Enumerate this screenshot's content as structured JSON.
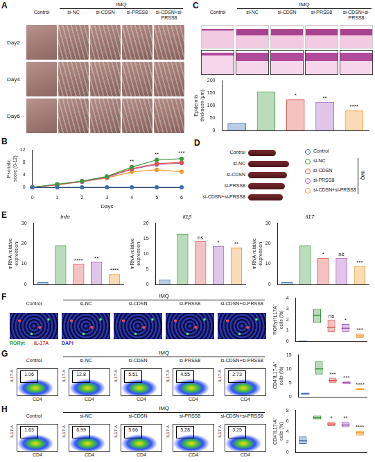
{
  "panels": {
    "A": {
      "letter": "A",
      "group_label": "IMQ",
      "columns": [
        "Control",
        "si-NC",
        "si-CDSN",
        "si-PRSS8",
        "si-CDSN+si-PRSS8"
      ],
      "rows": [
        "Day2",
        "Day4",
        "Day6"
      ]
    },
    "B": {
      "letter": "B"
    },
    "C": {
      "letter": "C",
      "group_label": "IMQ",
      "columns": [
        "Control",
        "si-NC",
        "si-CDSN",
        "si-PRSS8",
        "si-CDSN+si-PRSS8"
      ]
    },
    "D": {
      "letter": "D",
      "group_label": "IMQ",
      "rows": [
        "Control",
        "si-NC",
        "si-CDSN",
        "si-PRSS8",
        "si-CDSN+si-PRSS8"
      ],
      "legend": [
        {
          "name": "Control",
          "color": "#3d6fb6"
        },
        {
          "name": "si-NC",
          "color": "#3c9a3c"
        },
        {
          "name": "si-CDSN",
          "color": "#e0524c"
        },
        {
          "name": "si-PRSS8",
          "color": "#a25cc0"
        },
        {
          "name": "si-CDSN+si-PRSS8",
          "color": "#f0992e"
        }
      ]
    },
    "E": {
      "letter": "E"
    },
    "F": {
      "letter": "F",
      "group_label": "IMQ",
      "columns": [
        "Control",
        "si-NC",
        "si-CDSN",
        "si-PRSS8",
        "si-CDSN+si-PRSS8"
      ],
      "stains": [
        {
          "name": "RORγt",
          "color": "#2a9a2a"
        },
        {
          "name": "IL-17A",
          "color": "#e03030"
        },
        {
          "name": "DAPI",
          "color": "#3030d0"
        }
      ]
    },
    "G": {
      "letter": "G",
      "group_label": "IMQ",
      "columns": [
        "Control",
        "si-NC",
        "si-CDSN",
        "si-PRSS8",
        "si-CDSN+si-PRSS8"
      ],
      "x_label": "CD4",
      "y_label": "IL17-A",
      "gate_values": [
        1.06,
        12.8,
        5.51,
        4.55,
        2.73
      ]
    },
    "H": {
      "letter": "H",
      "group_label": "IMQ",
      "columns": [
        "Control",
        "si-NC",
        "si-CDSN",
        "si-PRSS8",
        "si-CDSN+si-PRSS8"
      ],
      "x_label": "CD4",
      "y_label": "IL17-A",
      "gate_values": [
        1.63,
        6.99,
        5.66,
        5.28,
        3.25
      ]
    }
  },
  "chart_data": [
    {
      "type": "line",
      "x": [
        0,
        1,
        2,
        3,
        4,
        5,
        6
      ],
      "xlim": [
        0,
        6
      ],
      "xticks": [
        0,
        1,
        2,
        3,
        4,
        5,
        6
      ],
      "ylim": [
        0,
        12
      ],
      "yticks": [
        0,
        4,
        8,
        12
      ],
      "x_label": "Days",
      "y_label": "Psoriatic score (0-12)",
      "grid": false,
      "series": [
        {
          "name": "Control",
          "color": "#3d6fb6",
          "marker": "circle",
          "values": [
            0,
            0,
            0,
            0,
            0,
            0,
            0
          ]
        },
        {
          "name": "si-NC",
          "color": "#3c9a3c",
          "marker": "circle",
          "values": [
            0,
            1,
            2,
            3.5,
            6.5,
            8.8,
            9.2
          ]
        },
        {
          "name": "si-CDSN",
          "color": "#e0524c",
          "marker": "circle",
          "values": [
            0,
            0.8,
            2,
            3.3,
            6,
            7.6,
            8
          ]
        },
        {
          "name": "si-PRSS8",
          "color": "#a25cc0",
          "marker": "circle",
          "values": [
            0,
            0.9,
            1.8,
            3.2,
            5.8,
            7.3,
            7.8
          ]
        },
        {
          "name": "si-CDSN+si-PRSS8",
          "color": "#f0992e",
          "marker": "circle",
          "values": [
            0,
            0.8,
            1.8,
            3,
            5,
            5.6,
            5
          ]
        }
      ],
      "annotations": [
        {
          "x": 4,
          "text": "**"
        },
        {
          "x": 5,
          "text": "**"
        },
        {
          "x": 6,
          "text": "***"
        }
      ]
    },
    {
      "type": "bar",
      "categories": [
        null,
        null,
        null,
        null,
        null
      ],
      "values": [
        30,
        155,
        125,
        115,
        80
      ],
      "colors": [
        "#3d6fb6",
        "#3c9a3c",
        "#e0524c",
        "#a25cc0",
        "#f0992e"
      ],
      "ylim": [
        0,
        200
      ],
      "yticks": [
        0,
        50,
        100,
        150,
        200
      ],
      "y_label": "Epidermis thickness (μm)",
      "significance": [
        null,
        null,
        "*",
        "**",
        "****"
      ],
      "grid": false,
      "tick_labels": "y"
    },
    {
      "type": "bar",
      "title": "tnfα",
      "categories": [
        null,
        null,
        null,
        null,
        null
      ],
      "values": [
        1,
        19,
        10,
        11,
        5
      ],
      "colors": [
        "#3d6fb6",
        "#3c9a3c",
        "#e0524c",
        "#a25cc0",
        "#f0992e"
      ],
      "ylim": [
        0,
        30
      ],
      "yticks": [
        0,
        10,
        20,
        30
      ],
      "y_label": "mRNA relative expression",
      "significance": [
        null,
        null,
        "****",
        "**",
        "****"
      ],
      "grid": false,
      "tick_labels": "y"
    },
    {
      "type": "bar",
      "title": "il1β",
      "categories": [
        null,
        null,
        null,
        null,
        null
      ],
      "values": [
        1.5,
        16.5,
        14,
        12.5,
        12
      ],
      "colors": [
        "#3d6fb6",
        "#3c9a3c",
        "#e0524c",
        "#a25cc0",
        "#f0992e"
      ],
      "ylim": [
        0,
        20
      ],
      "yticks": [
        0,
        5,
        10,
        15,
        20
      ],
      "y_label": "mRNA relative expression",
      "significance": [
        null,
        null,
        "ns",
        "*",
        "**"
      ],
      "grid": false,
      "tick_labels": "y"
    },
    {
      "type": "bar",
      "title": "il17",
      "categories": [
        null,
        null,
        null,
        null,
        null
      ],
      "values": [
        1,
        19,
        13,
        13,
        9
      ],
      "colors": [
        "#3d6fb6",
        "#3c9a3c",
        "#e0524c",
        "#a25cc0",
        "#f0992e"
      ],
      "ylim": [
        0,
        30
      ],
      "yticks": [
        0,
        10,
        20,
        30
      ],
      "y_label": "mRNA relative expression",
      "significance": [
        null,
        null,
        "*",
        "ns",
        "***"
      ],
      "grid": false,
      "tick_labels": "y"
    },
    {
      "type": "box",
      "categories": [
        null,
        null,
        null,
        null,
        null
      ],
      "values": [
        0,
        2.4,
        1.3,
        1.2,
        0.5
      ],
      "ranges": [
        [
          0,
          0.05
        ],
        [
          1.7,
          3.0
        ],
        [
          0.9,
          2.0
        ],
        [
          0.9,
          1.6
        ],
        [
          0.3,
          0.7
        ]
      ],
      "colors": [
        "#3d6fb6",
        "#3c9a3c",
        "#e0524c",
        "#a25cc0",
        "#f0992e"
      ],
      "ylim": [
        0,
        4
      ],
      "yticks": [
        0,
        1,
        2,
        3,
        4
      ],
      "y_label": "RORγt⁺IL17A⁺ cells (%)",
      "significance": [
        null,
        null,
        "ns",
        "*",
        "***"
      ],
      "grid": false,
      "tick_labels": "y"
    },
    {
      "type": "box",
      "categories": [
        null,
        null,
        null,
        null,
        null
      ],
      "values": [
        1.1,
        10,
        5.8,
        5,
        2.7
      ],
      "ranges": [
        [
          0.8,
          1.4
        ],
        [
          8,
          12.8
        ],
        [
          5.0,
          6.8
        ],
        [
          4.6,
          5.5
        ],
        [
          2.4,
          3.0
        ]
      ],
      "colors": [
        "#3d6fb6",
        "#3c9a3c",
        "#e0524c",
        "#a25cc0",
        "#f0992e"
      ],
      "ylim": [
        0,
        15
      ],
      "yticks": [
        0,
        5,
        10,
        15
      ],
      "y_label": "CD4⁺IL17-A⁺ cells (%)",
      "significance": [
        null,
        null,
        "***",
        "***",
        "****"
      ],
      "grid": false,
      "tick_labels": "y"
    },
    {
      "type": "box",
      "categories": [
        null,
        null,
        null,
        null,
        null
      ],
      "values": [
        2.2,
        6.6,
        5.4,
        5.2,
        3.7
      ],
      "ranges": [
        [
          1.6,
          3.0
        ],
        [
          6.3,
          7.0
        ],
        [
          5.0,
          5.8
        ],
        [
          4.8,
          5.8
        ],
        [
          3.2,
          4.1
        ]
      ],
      "colors": [
        "#3d6fb6",
        "#3c9a3c",
        "#e0524c",
        "#a25cc0",
        "#f0992e"
      ],
      "ylim": [
        0,
        8
      ],
      "yticks": [
        0,
        2,
        4,
        6,
        8
      ],
      "y_label": "CD4⁺IL17-A⁺ cells (%)",
      "significance": [
        null,
        null,
        "*",
        "**",
        "****"
      ],
      "grid": false,
      "tick_labels": "y"
    }
  ]
}
